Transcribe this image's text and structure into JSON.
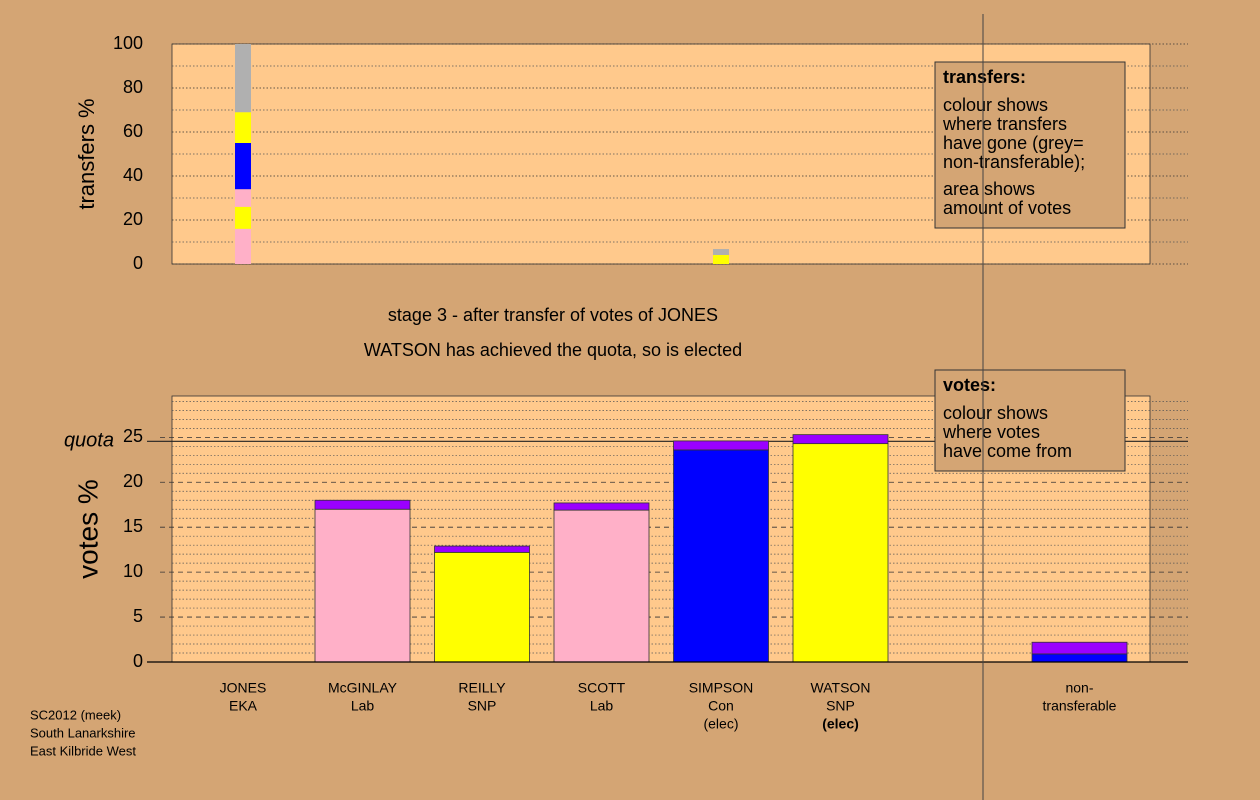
{
  "chart_data": [
    {
      "type": "stacked-bar",
      "y_label": "transfers %",
      "ylim": [
        0,
        100
      ],
      "yticks": [
        0,
        20,
        40,
        60,
        80,
        100
      ],
      "minor_yticks": [
        10,
        30,
        50,
        70,
        90
      ],
      "series": [
        {
          "color": "#ffb0c8",
          "values": [
            16,
            null,
            null,
            null,
            null,
            null,
            null,
            null
          ]
        },
        {
          "color": "#ffff00",
          "values": [
            10,
            null,
            null,
            null,
            4.1,
            null,
            null,
            null
          ]
        },
        {
          "color": "#ffb0c8",
          "values": [
            8,
            null,
            null,
            null,
            null,
            null,
            null,
            null
          ]
        },
        {
          "color": "#0000ff",
          "values": [
            21,
            null,
            null,
            null,
            null,
            null,
            null,
            null
          ]
        },
        {
          "color": "#ffff00",
          "values": [
            14,
            null,
            null,
            null,
            null,
            null,
            null,
            null
          ]
        },
        {
          "color": "#b0b0b0",
          "values": [
            31,
            null,
            null,
            null,
            2.7,
            null,
            null,
            null
          ]
        }
      ],
      "note_title": "transfers:",
      "note_paragraphs": [
        [
          "colour shows",
          "where transfers",
          "have gone (grey=",
          "non-transferable);"
        ],
        [
          "area shows",
          "amount of votes"
        ]
      ]
    },
    {
      "type": "stacked-bar",
      "y_label": "votes %",
      "categories": [
        [
          "JONES",
          "EKA"
        ],
        [
          "McGINLAY",
          "Lab"
        ],
        [
          "REILLY",
          "SNP"
        ],
        [
          "SCOTT",
          "Lab"
        ],
        [
          "SIMPSON",
          "Con",
          "(elec)"
        ],
        [
          "WATSON",
          "SNP",
          "(elec)"
        ],
        null,
        [
          "non-",
          "transferable"
        ]
      ],
      "ylim": [
        0,
        29.6
      ],
      "yticks": [
        0,
        5,
        10,
        15,
        20,
        25
      ],
      "minor_yticks": [
        1,
        2,
        3,
        4,
        6,
        7,
        8,
        9,
        11,
        12,
        13,
        14,
        16,
        17,
        18,
        19,
        21,
        22,
        23,
        24,
        26,
        27,
        28,
        29
      ],
      "quota": 24.56,
      "quota_label": "quota",
      "series": [
        {
          "color": "#ffb0c8",
          "values": [
            null,
            17,
            null,
            16.9,
            null,
            null,
            null,
            null
          ]
        },
        {
          "color": "#ffff00",
          "values": [
            null,
            null,
            12.2,
            null,
            null,
            24.3,
            null,
            null
          ]
        },
        {
          "color": "#0000ff",
          "values": [
            null,
            null,
            null,
            null,
            23.6,
            null,
            null,
            0.9
          ]
        },
        {
          "color": "#9a00ff",
          "values": [
            0,
            1,
            0.7,
            0.8,
            1,
            1,
            null,
            1.3
          ]
        }
      ],
      "note_title": "votes:",
      "note_paragraphs": [
        [
          "colour shows",
          "where votes",
          "have come from"
        ]
      ]
    }
  ],
  "captions": [
    "stage 3 - after transfer of votes of JONES",
    "WATSON has achieved the quota, so is elected"
  ],
  "source_lines": [
    "SC2012 (meek)",
    "South Lanarkshire",
    "East Kilbride West"
  ]
}
